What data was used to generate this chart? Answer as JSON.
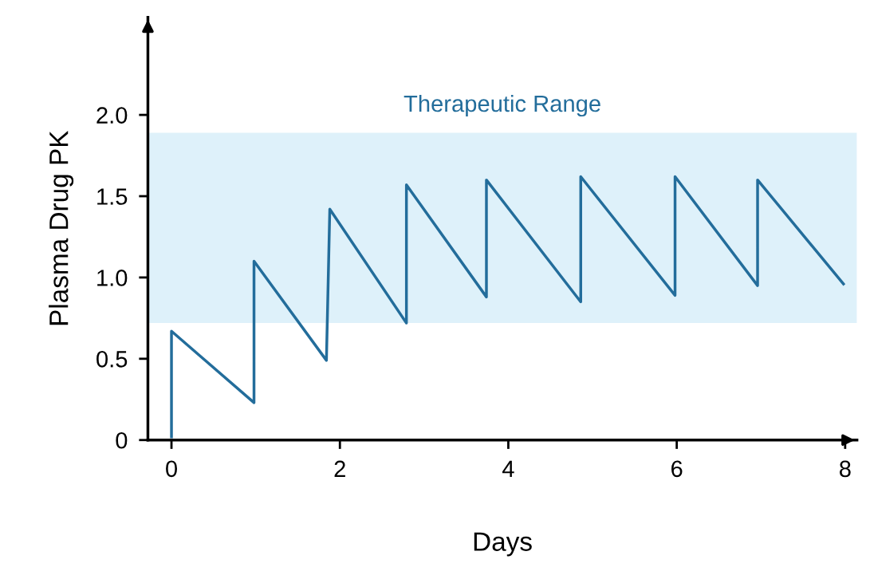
{
  "chart_data": {
    "type": "line",
    "xlabel": "Days",
    "ylabel": "Plasma Drug PK",
    "series": [
      {
        "color": "#236d9b",
        "x": [
          0,
          0,
          0.98,
          0.98,
          1.84,
          1.88,
          2.79,
          2.79,
          3.74,
          3.74,
          4.86,
          4.86,
          5.98,
          5.98,
          6.96,
          6.96,
          7.98
        ],
        "values": [
          0.02,
          0.67,
          0.23,
          1.1,
          0.49,
          1.42,
          0.72,
          1.57,
          0.88,
          1.6,
          0.85,
          1.62,
          0.89,
          1.62,
          0.95,
          1.6,
          0.96
        ]
      }
    ],
    "bands": [
      {
        "axis": "y",
        "from": 0.72,
        "to": 1.89,
        "label": "Therapeutic Range",
        "color": "#def1fa"
      }
    ],
    "xlim": [
      -0.28,
      8.14
    ],
    "ylim": [
      0,
      2.6
    ],
    "xticks": [
      0,
      2,
      4,
      6,
      8
    ],
    "yticks": [
      0,
      {
        "value": 0.5,
        "label": "0.5"
      },
      {
        "value": 1,
        "label": "1.0"
      },
      {
        "value": 1.5,
        "label": "1.5"
      },
      {
        "value": 2,
        "label": "2.0"
      }
    ],
    "grid": false,
    "legend": false
  }
}
